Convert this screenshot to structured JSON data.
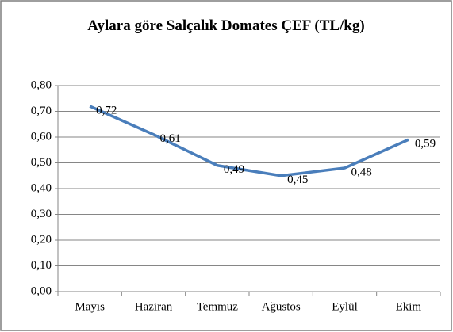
{
  "chart_data": {
    "type": "line",
    "title": "Aylara göre Salçalık Domates ÇEF (TL/kg)",
    "categories": [
      "Mayıs",
      "Haziran",
      "Temmuz",
      "Ağustos",
      "Eylül",
      "Ekim"
    ],
    "values": [
      0.72,
      0.61,
      0.49,
      0.45,
      0.48,
      0.59
    ],
    "value_labels": [
      "0,72",
      "0,61",
      "0,49",
      "0,45",
      "0,48",
      "0,59"
    ],
    "color": "#4a7ebb",
    "ylim": [
      0,
      0.8
    ],
    "yticks": [
      {
        "value": 0,
        "label": "0,00"
      },
      {
        "value": 0.1,
        "label": "0,10"
      },
      {
        "value": 0.2,
        "label": "0,20"
      },
      {
        "value": 0.3,
        "label": "0,30"
      },
      {
        "value": 0.4,
        "label": "0,40"
      },
      {
        "value": 0.5,
        "label": "0,50"
      },
      {
        "value": 0.6,
        "label": "0,60"
      },
      {
        "value": 0.7,
        "label": "0,70"
      },
      {
        "value": 0.8,
        "label": "0,80"
      }
    ],
    "grid": true
  }
}
